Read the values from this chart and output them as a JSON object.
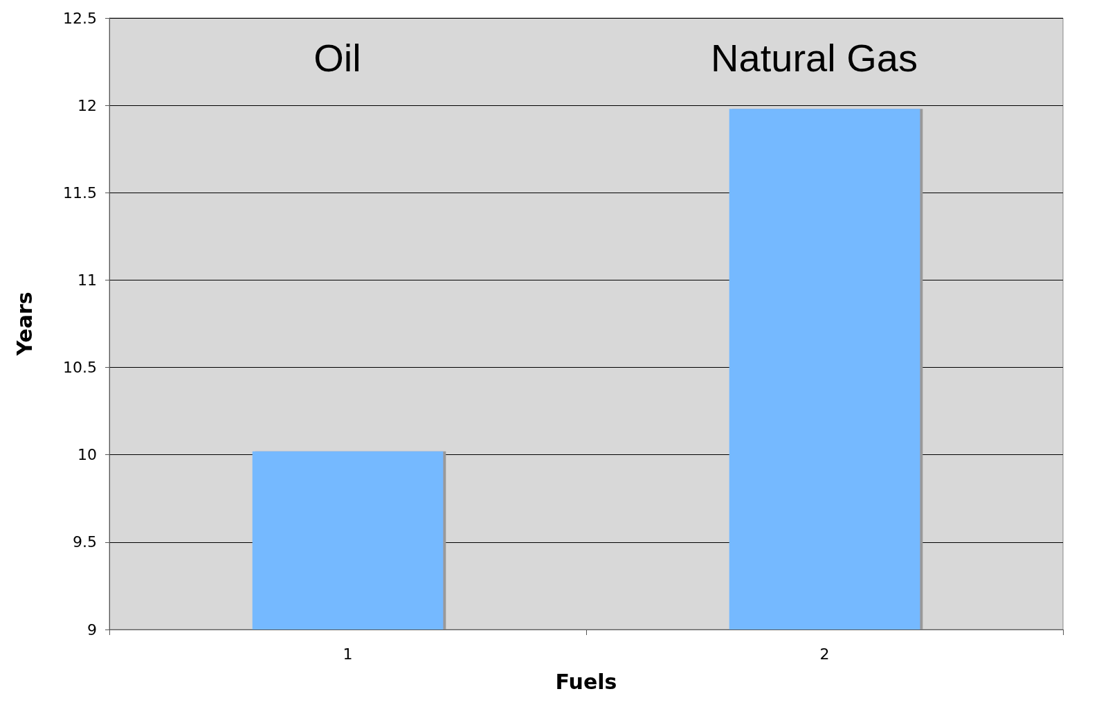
{
  "chart_data": {
    "type": "bar",
    "xlabel": "Fuels",
    "ylabel": "Years",
    "categories": [
      "1",
      "2"
    ],
    "series": [
      {
        "color": "#74b9ff",
        "values": [
          10.02,
          11.98
        ]
      }
    ],
    "ylim": [
      9,
      12.5
    ],
    "yticks": [
      9,
      9.5,
      10,
      10.5,
      11,
      11.5,
      12,
      12.5
    ],
    "grid": "y",
    "annotations": [
      "Oil",
      "Natural Gas"
    ]
  }
}
